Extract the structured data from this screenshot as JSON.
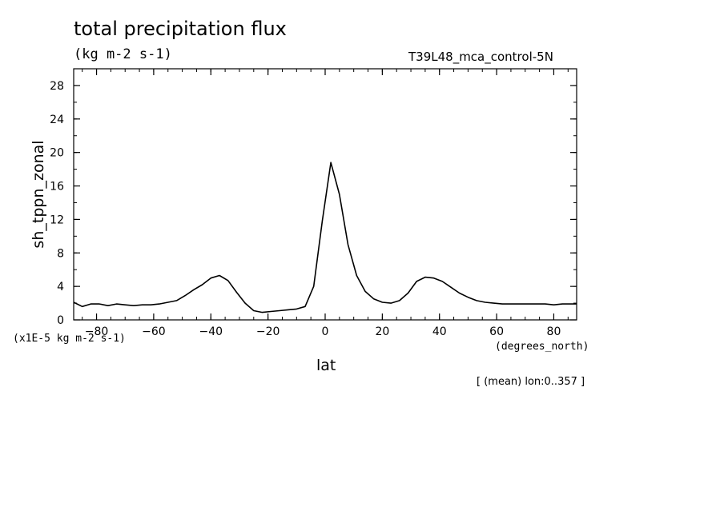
{
  "chart_data": {
    "type": "line",
    "title": "total precipitation flux",
    "units": "(kg m-2 s-1)",
    "experiment": "T39L48_mca_control-5N",
    "xlabel": "lat",
    "xunits": "(degrees_north)",
    "ylabel": "sh_tppn_zonal",
    "yscale_note": "(x1E-5 kg m-2 s-1)",
    "footer": "[ (mean) lon:0..357 ]",
    "xlim": [
      -88,
      88
    ],
    "ylim": [
      0,
      30
    ],
    "xticks": [
      "-80",
      "-60",
      "-40",
      "-20",
      "0",
      "20",
      "40",
      "60",
      "80"
    ],
    "yticks": [
      "0",
      "4",
      "8",
      "12",
      "16",
      "20",
      "24",
      "28"
    ],
    "grid": false,
    "series": [
      {
        "x": [
          -88,
          -85,
          -82,
          -79,
          -76,
          -73,
          -70,
          -67,
          -64,
          -61,
          -58,
          -55,
          -52,
          -49,
          -46,
          -43,
          -40,
          -37,
          -34,
          -31,
          -28,
          -25,
          -22,
          -19,
          -16,
          -13,
          -10,
          -7,
          -4,
          -1,
          2,
          5,
          8,
          11,
          14,
          17,
          20,
          23,
          26,
          29,
          32,
          35,
          38,
          41,
          44,
          47,
          50,
          53,
          56,
          59,
          62,
          65,
          68,
          71,
          74,
          77,
          80,
          83,
          86,
          88
        ],
        "y": [
          2.1,
          1.6,
          1.9,
          1.9,
          1.7,
          1.9,
          1.8,
          1.7,
          1.8,
          1.8,
          1.9,
          2.1,
          2.3,
          2.9,
          3.6,
          4.2,
          5.0,
          5.3,
          4.7,
          3.3,
          2.0,
          1.1,
          0.9,
          1.0,
          1.1,
          1.2,
          1.3,
          1.6,
          4.0,
          11.8,
          18.8,
          15.0,
          9.0,
          5.3,
          3.4,
          2.5,
          2.1,
          2.0,
          2.3,
          3.2,
          4.6,
          5.1,
          5.0,
          4.6,
          3.9,
          3.2,
          2.7,
          2.3,
          2.1,
          2.0,
          1.9,
          1.9,
          1.9,
          1.9,
          1.9,
          1.9,
          1.8,
          1.9,
          1.9,
          1.9
        ]
      }
    ]
  }
}
